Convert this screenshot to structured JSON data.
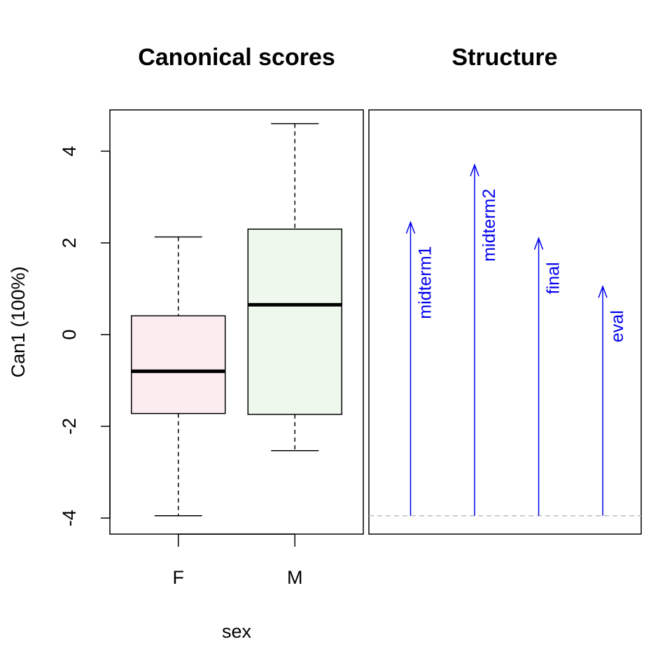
{
  "chart_data": [
    {
      "type": "boxplot",
      "title": "Canonical scores",
      "xlabel": "sex",
      "ylabel": "Can1 (100%)",
      "ylim": [
        -4.35,
        4.9
      ],
      "yticks": [
        4,
        2,
        0,
        -2,
        -4
      ],
      "categories": [
        "F",
        "M"
      ],
      "boxes": [
        {
          "name": "F",
          "min": -3.95,
          "q1": -1.72,
          "median": -0.8,
          "q3": 0.41,
          "max": 2.13,
          "color": "#fdecef"
        },
        {
          "name": "M",
          "min": -2.53,
          "q1": -1.74,
          "median": 0.65,
          "q3": 2.3,
          "max": 4.6,
          "color": "#eef8ec"
        }
      ],
      "grid": false
    },
    {
      "type": "vector",
      "title": "Structure",
      "baseline": -3.95,
      "vectors": [
        {
          "name": "midterm1",
          "value": 2.45
        },
        {
          "name": "midterm2",
          "value": 3.7
        },
        {
          "name": "final",
          "value": 2.1
        },
        {
          "name": "eval",
          "value": 1.05
        }
      ],
      "arrow_color": "#0000ee",
      "baseline_color": "#bebebe",
      "grid": false
    }
  ]
}
